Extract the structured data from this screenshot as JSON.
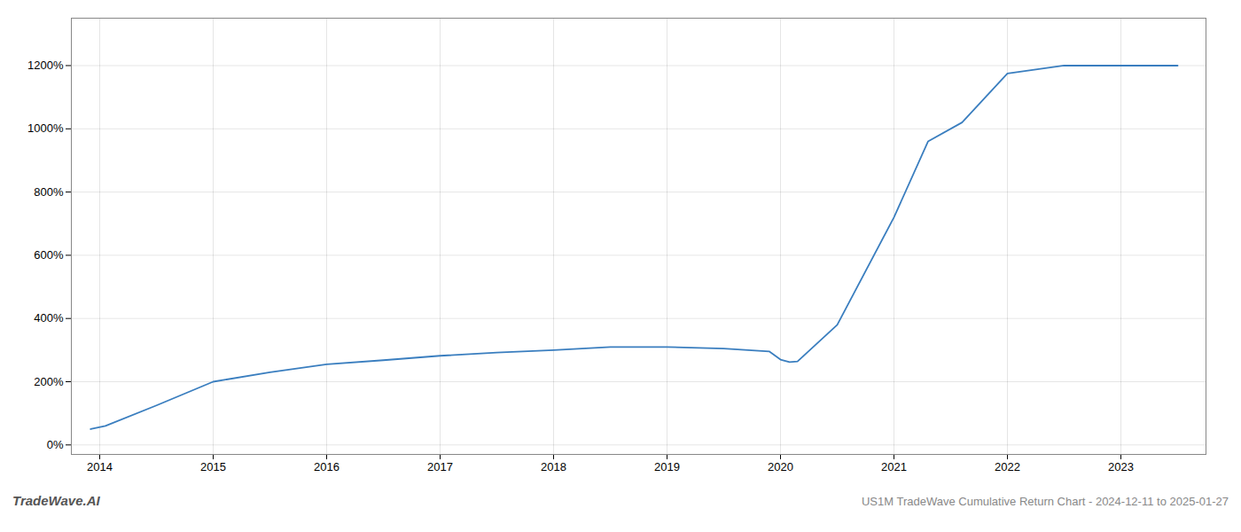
{
  "chart_data": {
    "type": "line",
    "title": "US1M TradeWave Cumulative Return Chart - 2024-12-11 to 2025-01-27",
    "annotations": [
      "TradeWave.AI"
    ],
    "x": [
      2013.92,
      2014.05,
      2014.5,
      2015.0,
      2015.5,
      2016.0,
      2016.5,
      2017.0,
      2017.5,
      2018.0,
      2018.5,
      2019.0,
      2019.5,
      2019.9,
      2020.0,
      2020.08,
      2020.15,
      2020.5,
      2021.0,
      2021.3,
      2021.6,
      2022.0,
      2022.5,
      2023.0,
      2023.5
    ],
    "values": [
      50,
      60,
      125,
      200,
      230,
      255,
      268,
      282,
      292,
      300,
      310,
      310,
      305,
      296,
      270,
      262,
      264,
      380,
      720,
      960,
      1020,
      1175,
      1200,
      1200,
      1200
    ],
    "color": "#3a7ebf",
    "xlim": [
      2013.75,
      2023.75
    ],
    "xticks": [
      2014,
      2015,
      2016,
      2017,
      2018,
      2019,
      2020,
      2021,
      2022,
      2023
    ],
    "ylim": [
      -30,
      1350
    ],
    "yticks": [
      {
        "value": 0,
        "label": "0%"
      },
      {
        "value": 200,
        "label": "200%"
      },
      {
        "value": 400,
        "label": "400%"
      },
      {
        "value": 600,
        "label": "600%"
      },
      {
        "value": 800,
        "label": "800%"
      },
      {
        "value": 1000,
        "label": "1000%"
      },
      {
        "value": 1200,
        "label": "1200%"
      }
    ],
    "grid": true
  }
}
